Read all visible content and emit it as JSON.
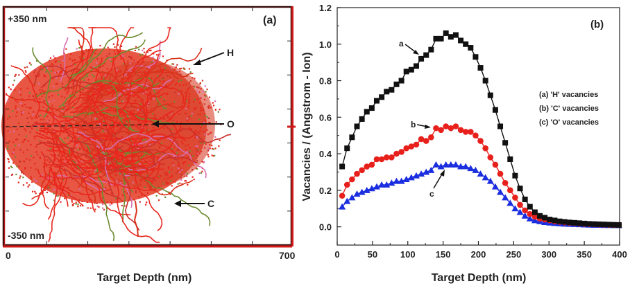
{
  "chart_data": [
    {
      "panel": "(a)",
      "type": "scatter",
      "title": "",
      "panel_label": "(a)",
      "xlabel": "Target Depth (nm)",
      "ylabel": "",
      "xlim": [
        0,
        700
      ],
      "ylim": [
        -350,
        350
      ],
      "x_tick_labels": [
        "0",
        "700"
      ],
      "y_extent_labels": {
        "top": "+350 nm",
        "bottom": "-350 nm"
      },
      "description": "Ion collision cascade trajectories (dense red/green/pink tree-like tracks) spreading laterally from the surface into the target",
      "annotations": [
        {
          "text": "H",
          "arrow_to": [
            480,
            170
          ]
        },
        {
          "text": "O",
          "arrow_to": [
            370,
            0
          ]
        },
        {
          "text": "C",
          "arrow_to": [
            410,
            -190
          ]
        }
      ],
      "colors": {
        "track_primary": "#e8261c",
        "track_secondary": "#6b8a2e",
        "track_tertiary": "#d86fb0",
        "frame": "#2a0a0a",
        "frame_accent": "#d11a1a"
      }
    },
    {
      "panel": "(b)",
      "type": "line",
      "title": "",
      "panel_label": "(b)",
      "xlabel": "Target Depth (nm)",
      "ylabel": "Vacancies / (Angstrom - Ion)",
      "xlim": [
        0,
        400
      ],
      "ylim": [
        -0.1,
        1.2
      ],
      "x_ticks": [
        0,
        50,
        100,
        150,
        200,
        250,
        300,
        350,
        400
      ],
      "x_tick_labels": [
        "0",
        "50",
        "100",
        "150",
        "200",
        "250",
        "300",
        "350",
        "400"
      ],
      "y_ticks": [
        0.0,
        0.2,
        0.4,
        0.6,
        0.8,
        1.0,
        1.2
      ],
      "y_tick_labels": [
        "0.0",
        "0.2",
        "0.4",
        "0.6",
        "0.8",
        "1.0",
        "1.2"
      ],
      "grid": false,
      "legend_position": "right",
      "legend": [
        "(a) 'H' vacancies",
        "(b) 'C' vacancies",
        "(c) 'O' vacancies"
      ],
      "x": [
        7,
        14,
        21,
        28,
        35,
        42,
        49,
        56,
        63,
        70,
        77,
        84,
        91,
        98,
        105,
        112,
        119,
        126,
        133,
        140,
        147,
        154,
        161,
        168,
        175,
        182,
        189,
        196,
        203,
        210,
        217,
        224,
        231,
        238,
        245,
        252,
        259,
        266,
        273,
        280,
        287,
        294,
        301,
        308,
        315,
        322,
        329,
        336,
        343,
        350,
        357,
        364,
        371,
        378,
        385,
        392,
        399
      ],
      "series": [
        {
          "name": "(a) 'H' vacancies",
          "curve_label": "a",
          "color": "#111111",
          "marker": "square",
          "values": [
            0.33,
            0.43,
            0.49,
            0.55,
            0.59,
            0.63,
            0.65,
            0.69,
            0.71,
            0.74,
            0.75,
            0.78,
            0.8,
            0.85,
            0.86,
            0.88,
            0.92,
            0.94,
            0.97,
            1.03,
            1.03,
            1.06,
            1.04,
            1.05,
            1.02,
            1.0,
            0.98,
            0.93,
            0.87,
            0.8,
            0.72,
            0.64,
            0.55,
            0.46,
            0.37,
            0.28,
            0.21,
            0.15,
            0.11,
            0.08,
            0.06,
            0.05,
            0.04,
            0.035,
            0.03,
            0.027,
            0.024,
            0.022,
            0.02,
            0.018,
            0.016,
            0.015,
            0.014,
            0.013,
            0.012,
            0.011,
            0.01
          ]
        },
        {
          "name": "(b) 'C' vacancies",
          "curve_label": "b",
          "color": "#e8201c",
          "marker": "circle",
          "values": [
            0.17,
            0.23,
            0.26,
            0.29,
            0.31,
            0.33,
            0.34,
            0.37,
            0.37,
            0.38,
            0.38,
            0.4,
            0.41,
            0.43,
            0.44,
            0.45,
            0.48,
            0.47,
            0.49,
            0.54,
            0.53,
            0.55,
            0.54,
            0.55,
            0.53,
            0.52,
            0.52,
            0.5,
            0.47,
            0.43,
            0.38,
            0.34,
            0.29,
            0.24,
            0.2,
            0.16,
            0.12,
            0.09,
            0.07,
            0.055,
            0.045,
            0.04,
            0.035,
            0.03,
            0.027,
            0.024,
            0.022,
            0.02,
            0.018,
            0.016,
            0.015,
            0.014,
            0.013,
            0.012,
            0.011,
            0.01,
            0.01
          ]
        },
        {
          "name": "(c) 'O' vacancies",
          "curve_label": "c",
          "color": "#1a2ee0",
          "marker": "triangle",
          "values": [
            0.11,
            0.14,
            0.16,
            0.18,
            0.19,
            0.2,
            0.21,
            0.22,
            0.23,
            0.23,
            0.24,
            0.25,
            0.25,
            0.26,
            0.27,
            0.28,
            0.29,
            0.3,
            0.31,
            0.34,
            0.33,
            0.34,
            0.34,
            0.34,
            0.33,
            0.33,
            0.32,
            0.31,
            0.29,
            0.27,
            0.25,
            0.22,
            0.19,
            0.16,
            0.13,
            0.1,
            0.08,
            0.06,
            0.045,
            0.035,
            0.03,
            0.025,
            0.022,
            0.02,
            0.018,
            0.016,
            0.015,
            0.014,
            0.013,
            0.012,
            0.011,
            0.01,
            0.01,
            0.009,
            0.009,
            0.008,
            0.008
          ]
        }
      ],
      "annotations": [
        {
          "text": "a",
          "arrow_to_series": "(a) 'H' vacancies",
          "at_x": 120
        },
        {
          "text": "b",
          "arrow_to_series": "(b) 'C' vacancies",
          "at_x": 140
        },
        {
          "text": "c",
          "arrow_to_series": "(c) 'O' vacancies",
          "at_x": 157
        }
      ]
    }
  ]
}
